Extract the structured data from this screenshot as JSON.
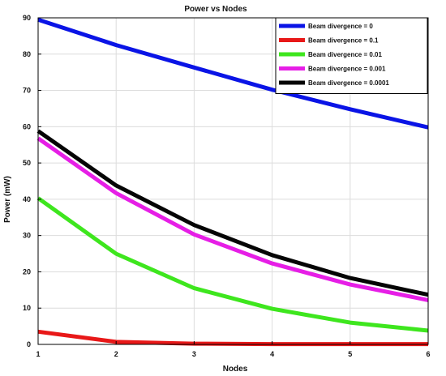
{
  "chart_data": {
    "type": "line",
    "title": "Power vs Nodes",
    "xlabel": "Nodes",
    "ylabel": "Power (mW)",
    "x": [
      1,
      2,
      3,
      4,
      5,
      6
    ],
    "xlim": [
      1,
      6
    ],
    "ylim": [
      0,
      90
    ],
    "xticks": [
      "1",
      "2",
      "3",
      "4",
      "5",
      "6"
    ],
    "yticks": [
      "0",
      "10",
      "20",
      "30",
      "40",
      "50",
      "60",
      "70",
      "80",
      "90"
    ],
    "grid": true,
    "legend_position": "top-right",
    "series": [
      {
        "name": "Beam divergence = 0",
        "color": "#0a14e6",
        "values": [
          89.5,
          82.5,
          76.3,
          70.2,
          64.8,
          59.8
        ]
      },
      {
        "name": "Beam divergence = 0.1",
        "color": "#e81818",
        "values": [
          3.5,
          0.7,
          0.2,
          0.1,
          0.1,
          0.1
        ]
      },
      {
        "name": "Beam divergence = 0.01",
        "color": "#3ee61e",
        "values": [
          40.3,
          25.0,
          15.5,
          9.8,
          6.0,
          3.8
        ]
      },
      {
        "name": "Beam divergence = 0.001",
        "color": "#e61ee6",
        "values": [
          56.8,
          41.7,
          30.3,
          22.3,
          16.5,
          12.2
        ]
      },
      {
        "name": "Beam divergence = 0.0001",
        "color": "#050505",
        "values": [
          58.8,
          43.8,
          32.9,
          24.6,
          18.3,
          13.7
        ]
      }
    ]
  }
}
